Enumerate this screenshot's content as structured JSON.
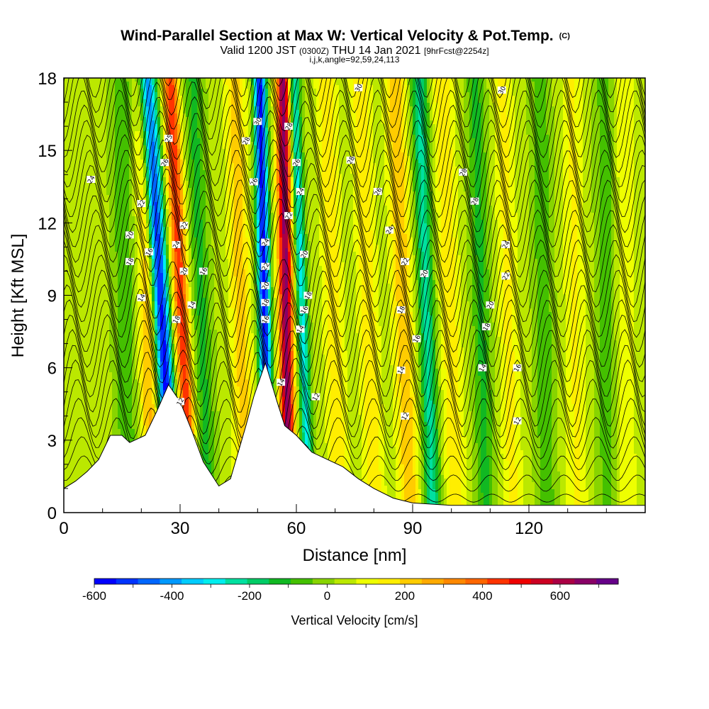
{
  "chart_data": {
    "type": "heatmap",
    "title": {
      "main": "Wind-Parallel Section at Max W: Vertical Velocity & Pot.Temp.",
      "mark": "(C)",
      "line2_a": "Valid 1200 JST ",
      "line2_b": "(0300Z)",
      "line2_c": " THU 14 Jan 2021 ",
      "line2_d": "[9hrFcst@2254z]",
      "line3": "i,j,k,angle=92,59,24,113"
    },
    "xlabel": "Distance [nm]",
    "ylabel": "Height [Kft MSL]",
    "xlim": [
      0,
      150
    ],
    "ylim": [
      0,
      18
    ],
    "x_ticks": [
      "0",
      "30",
      "60",
      "90",
      "120"
    ],
    "x_tick_values": [
      0,
      30,
      60,
      90,
      120
    ],
    "y_ticks": [
      "0",
      "3",
      "6",
      "9",
      "12",
      "15",
      "18"
    ],
    "y_tick_values": [
      0,
      3,
      6,
      9,
      12,
      15,
      18
    ],
    "colorbar": {
      "label": "Vertical Velocity [cm/s]",
      "tick_labels": [
        "-600",
        "-400",
        "-200",
        "0",
        "200",
        "400",
        "600"
      ],
      "tick_values": [
        -600,
        -400,
        -200,
        0,
        200,
        400,
        600
      ],
      "range": [
        -600,
        750
      ],
      "colors": [
        "#0000ff",
        "#0033ff",
        "#0066ff",
        "#0099ff",
        "#00ccff",
        "#00eeee",
        "#00e0a0",
        "#00cc66",
        "#11b822",
        "#44c000",
        "#88d400",
        "#bbe800",
        "#eeff00",
        "#ffee00",
        "#ffcc00",
        "#ffaa00",
        "#ff8800",
        "#ff6600",
        "#ff3300",
        "#ee0000",
        "#cc0022",
        "#aa0044",
        "#880066",
        "#660088"
      ]
    },
    "terrain_kft": [
      [
        0,
        1.0
      ],
      [
        3,
        1.3
      ],
      [
        6,
        1.7
      ],
      [
        9,
        2.2
      ],
      [
        12,
        3.2
      ],
      [
        15,
        3.2
      ],
      [
        17,
        2.9
      ],
      [
        21,
        3.2
      ],
      [
        24,
        4.2
      ],
      [
        27,
        5.3
      ],
      [
        30,
        4.6
      ],
      [
        33,
        3.4
      ],
      [
        36,
        2.1
      ],
      [
        40,
        1.1
      ],
      [
        43,
        1.4
      ],
      [
        45,
        2.5
      ],
      [
        47,
        3.6
      ],
      [
        49,
        4.8
      ],
      [
        52,
        6.2
      ],
      [
        55,
        4.6
      ],
      [
        57,
        3.6
      ],
      [
        60,
        3.2
      ],
      [
        64,
        2.5
      ],
      [
        68,
        2.2
      ],
      [
        72,
        1.9
      ],
      [
        76,
        1.4
      ],
      [
        80,
        1.0
      ],
      [
        85,
        0.6
      ],
      [
        90,
        0.4
      ],
      [
        100,
        0.3
      ],
      [
        115,
        0.3
      ],
      [
        150,
        0.3
      ]
    ],
    "theta_contour_labels": [
      {
        "text": "24",
        "x": 7,
        "y": 13.8
      },
      {
        "text": "22",
        "x": 20,
        "y": 12.8
      },
      {
        "text": "20",
        "x": 17,
        "y": 11.5
      },
      {
        "text": "18",
        "x": 17,
        "y": 10.4
      },
      {
        "text": "16",
        "x": 22,
        "y": 10.8
      },
      {
        "text": "14",
        "x": 20,
        "y": 8.9
      },
      {
        "text": "25",
        "x": 27,
        "y": 15.5
      },
      {
        "text": "26",
        "x": 26,
        "y": 14.5
      },
      {
        "text": "24",
        "x": 29,
        "y": 11.1
      },
      {
        "text": "22",
        "x": 31,
        "y": 11.9
      },
      {
        "text": "20",
        "x": 31,
        "y": 10.0
      },
      {
        "text": "18",
        "x": 29,
        "y": 8.0
      },
      {
        "text": "16",
        "x": 36,
        "y": 10.0
      },
      {
        "text": "14",
        "x": 33,
        "y": 8.6
      },
      {
        "text": "12",
        "x": 30,
        "y": 4.6
      },
      {
        "text": "30",
        "x": 50,
        "y": 16.2
      },
      {
        "text": "28",
        "x": 47,
        "y": 15.4
      },
      {
        "text": "26",
        "x": 49,
        "y": 13.7
      },
      {
        "text": "24",
        "x": 52,
        "y": 11.2
      },
      {
        "text": "22",
        "x": 52,
        "y": 10.2
      },
      {
        "text": "20",
        "x": 52,
        "y": 9.4
      },
      {
        "text": "18",
        "x": 52,
        "y": 8.7
      },
      {
        "text": "16",
        "x": 52,
        "y": 8.0
      },
      {
        "text": "14",
        "x": 56,
        "y": 5.4
      },
      {
        "text": "28",
        "x": 58,
        "y": 16.0
      },
      {
        "text": "26",
        "x": 60,
        "y": 14.5
      },
      {
        "text": "24",
        "x": 61,
        "y": 13.3
      },
      {
        "text": "22",
        "x": 58,
        "y": 12.3
      },
      {
        "text": "20",
        "x": 62,
        "y": 10.7
      },
      {
        "text": "18",
        "x": 63,
        "y": 9.0
      },
      {
        "text": "16",
        "x": 62,
        "y": 8.4
      },
      {
        "text": "14",
        "x": 61,
        "y": 7.6
      },
      {
        "text": "12",
        "x": 65,
        "y": 4.8
      },
      {
        "text": "30",
        "x": 76,
        "y": 17.6
      },
      {
        "text": "28",
        "x": 74,
        "y": 14.6
      },
      {
        "text": "26",
        "x": 81,
        "y": 13.3
      },
      {
        "text": "24",
        "x": 84,
        "y": 11.7
      },
      {
        "text": "22",
        "x": 88,
        "y": 10.4
      },
      {
        "text": "20",
        "x": 93,
        "y": 9.9
      },
      {
        "text": "18",
        "x": 87,
        "y": 8.4
      },
      {
        "text": "16",
        "x": 91,
        "y": 7.2
      },
      {
        "text": "14",
        "x": 87,
        "y": 5.9
      },
      {
        "text": "12",
        "x": 88,
        "y": 4.0
      },
      {
        "text": "28",
        "x": 103,
        "y": 14.1
      },
      {
        "text": "28",
        "x": 106,
        "y": 12.9
      },
      {
        "text": "24",
        "x": 114,
        "y": 11.1
      },
      {
        "text": "22",
        "x": 114,
        "y": 9.8
      },
      {
        "text": "20",
        "x": 110,
        "y": 8.6
      },
      {
        "text": "18",
        "x": 109,
        "y": 7.7
      },
      {
        "text": "14",
        "x": 108,
        "y": 6.0
      },
      {
        "text": "16",
        "x": 117,
        "y": 6.0
      },
      {
        "text": "12",
        "x": 117,
        "y": 3.8
      },
      {
        "text": "30",
        "x": 113,
        "y": 17.5
      }
    ]
  }
}
